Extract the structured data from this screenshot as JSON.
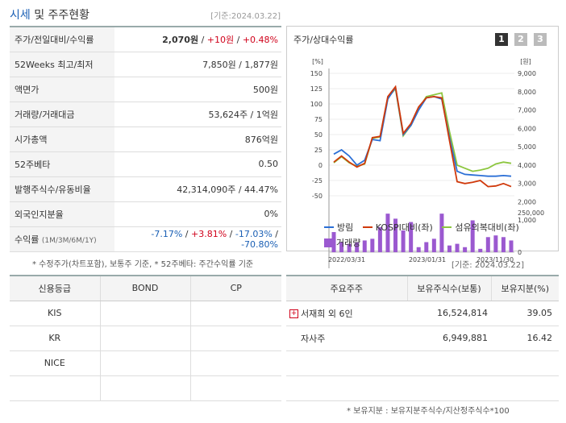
{
  "header": {
    "title_a": "시세",
    "title_b": " 및 주주현황",
    "date": "[기준:2024.03.22]"
  },
  "quote": {
    "price_row": {
      "label": "주가/전일대비/수익률",
      "price": "2,070원",
      "sep1": " / ",
      "change": "+10원",
      "sep2": " / ",
      "rate": "+0.48%"
    },
    "rows": [
      {
        "label": "52Weeks 최고/최저",
        "value": "7,850원 / 1,877원"
      },
      {
        "label": "액면가",
        "value": "500원"
      },
      {
        "label": "거래량/거래대금",
        "value": "53,624주 / 1억원"
      },
      {
        "label": "시가총액",
        "value": "876억원"
      },
      {
        "label": "52주베타",
        "value": "0.50"
      },
      {
        "label": "발행주식수/유동비율",
        "value": "42,314,090주 / 44.47%"
      },
      {
        "label": "외국인지분율",
        "value": "0%"
      }
    ],
    "return_row": {
      "label": "수익률",
      "periods": "(1M/3M/6M/1Y)",
      "v1": "-7.17%",
      "v2": "+3.81%",
      "v3": "-17.03%",
      "v4": "-70.80%",
      "sep": " / "
    }
  },
  "notes": {
    "n1": "* 수정주가(차트포함), 보통주 기준, * 52주베타: 주간수익률 기준",
    "n2": "[기준: 2024.03.22]",
    "n3": "* 보유지분 : 보유지분주식수/지산정주식수*100"
  },
  "chart": {
    "title": "주가/상대수익률",
    "pages": [
      "1",
      "2",
      "3"
    ],
    "left_unit": "[%]",
    "right_unit": "[원]",
    "left_ticks": [
      "150",
      "125",
      "100",
      "75",
      "50",
      "25",
      "0",
      "-25",
      "-50"
    ],
    "right_ticks": [
      "9,000",
      "8,000",
      "7,000",
      "6,000",
      "5,000",
      "4,000",
      "3,000",
      "2,000",
      "1,000"
    ],
    "vol_ticks": [
      "250,000",
      "0"
    ],
    "x_ticks": [
      "2022/03/31",
      "2023/01/31",
      "2023/11/30"
    ],
    "legend": {
      "s1": "방림",
      "s2": "KOSPI대비(좌)",
      "s3": "섬유의복대비(좌)",
      "s4": "거래량"
    },
    "colors": {
      "s1": "#2b6fd6",
      "s2": "#d0390b",
      "s3": "#8cc63f",
      "vol": "#9b59d0"
    }
  },
  "chart_data": {
    "type": "line",
    "x_labels": [
      "2022/03/31",
      "2023/01/31",
      "2023/11/30"
    ],
    "ylim_left": [
      -50,
      150
    ],
    "ylim_right": [
      1000,
      9000
    ],
    "series": [
      {
        "name": "방림",
        "values": [
          18,
          25,
          15,
          0,
          8,
          42,
          40,
          108,
          127,
          50,
          65,
          90,
          110,
          112,
          108,
          45,
          -10,
          -15,
          -16,
          -17,
          -18,
          -18,
          -17,
          -18
        ]
      },
      {
        "name": "KOSPI대비(좌)",
        "values": [
          5,
          15,
          5,
          -3,
          3,
          45,
          47,
          112,
          128,
          52,
          68,
          95,
          110,
          112,
          110,
          40,
          -27,
          -30,
          -28,
          -25,
          -35,
          -34,
          -30,
          -35
        ]
      },
      {
        "name": "섬유의복대비(좌)",
        "values": [
          4,
          14,
          4,
          -2,
          2,
          44,
          46,
          110,
          125,
          48,
          65,
          92,
          112,
          115,
          118,
          55,
          0,
          -5,
          -10,
          -8,
          -5,
          2,
          5,
          3
        ]
      }
    ],
    "volume": [
      120000,
      60000,
      50000,
      60000,
      70000,
      80000,
      150000,
      230000,
      200000,
      130000,
      180000,
      30000,
      60000,
      80000,
      230000,
      40000,
      50000,
      30000,
      190000,
      20000,
      90000,
      100000,
      90000,
      70000
    ]
  },
  "credit": {
    "headers": [
      "신용등급",
      "BOND",
      "CP"
    ],
    "rows": [
      [
        "KIS",
        "",
        ""
      ],
      [
        "KR",
        "",
        ""
      ],
      [
        "NICE",
        "",
        ""
      ],
      [
        "",
        "",
        ""
      ]
    ]
  },
  "holders": {
    "headers": [
      "주요주주",
      "보유주식수(보통)",
      "보유지분(%)"
    ],
    "rows": [
      {
        "name": "서재희 외 6인",
        "shares": "16,524,814",
        "pct": "39.05",
        "icon": "plus-icon"
      },
      {
        "name": "자사주",
        "shares": "6,949,881",
        "pct": "16.42"
      }
    ]
  }
}
